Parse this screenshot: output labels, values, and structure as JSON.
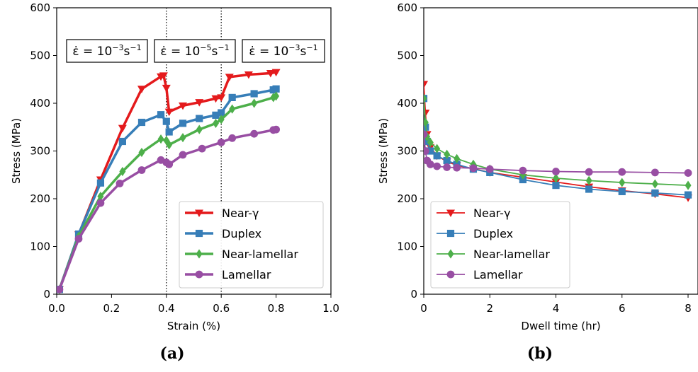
{
  "colors": {
    "near_gamma": "#e41a1c",
    "duplex": "#377eb8",
    "near_lamellar": "#4daf4a",
    "lamellar": "#984ea3"
  },
  "chart_data": [
    {
      "panel_label": "(a)",
      "type": "line",
      "xlabel": "Strain (%)",
      "ylabel": "Stress (MPa)",
      "xlim": [
        0.0,
        1.0
      ],
      "ylim": [
        0,
        600
      ],
      "xticks": [
        "0.0",
        "0.2",
        "0.4",
        "0.6",
        "0.8",
        "1.0"
      ],
      "yticks": [
        "0",
        "100",
        "200",
        "300",
        "400",
        "500",
        "600"
      ],
      "grid": false,
      "legend_loc": "lower right",
      "vlines": [
        0.4,
        0.6
      ],
      "rate_labels": [
        {
          "prefix": "ε̇ = 10",
          "exp": "−3",
          "unit": "s",
          "unit_exp": "−1"
        },
        {
          "prefix": "ε̇ = 10",
          "exp": "−5",
          "unit": "s",
          "unit_exp": "−1"
        },
        {
          "prefix": "ε̇ = 10",
          "exp": "−3",
          "unit": "s",
          "unit_exp": "−1"
        }
      ],
      "series": [
        {
          "name": "Near-γ",
          "color_key": "near_gamma",
          "marker": "triangle-down",
          "x": [
            0.01,
            0.08,
            0.16,
            0.24,
            0.31,
            0.38,
            0.39,
            0.4,
            0.41,
            0.46,
            0.52,
            0.58,
            0.6,
            0.63,
            0.7,
            0.78,
            0.8
          ],
          "y": [
            10,
            125,
            240,
            348,
            430,
            456,
            458,
            432,
            382,
            395,
            402,
            410,
            412,
            455,
            460,
            463,
            465
          ]
        },
        {
          "name": "Duplex",
          "color_key": "duplex",
          "marker": "square",
          "x": [
            0.01,
            0.08,
            0.16,
            0.24,
            0.31,
            0.38,
            0.4,
            0.41,
            0.46,
            0.52,
            0.58,
            0.6,
            0.64,
            0.72,
            0.79,
            0.8
          ],
          "y": [
            10,
            126,
            233,
            320,
            360,
            376,
            362,
            340,
            358,
            368,
            375,
            380,
            412,
            420,
            428,
            430
          ]
        },
        {
          "name": "Near-lamellar",
          "color_key": "near_lamellar",
          "marker": "diamond",
          "x": [
            0.01,
            0.08,
            0.16,
            0.24,
            0.31,
            0.38,
            0.4,
            0.41,
            0.46,
            0.52,
            0.58,
            0.6,
            0.64,
            0.72,
            0.79,
            0.8
          ],
          "y": [
            10,
            121,
            205,
            257,
            297,
            325,
            322,
            313,
            328,
            345,
            358,
            366,
            388,
            400,
            412,
            415
          ]
        },
        {
          "name": "Lamellar",
          "color_key": "lamellar",
          "marker": "circle",
          "x": [
            0.01,
            0.08,
            0.16,
            0.23,
            0.31,
            0.38,
            0.4,
            0.41,
            0.46,
            0.53,
            0.6,
            0.64,
            0.72,
            0.79,
            0.8
          ],
          "y": [
            10,
            116,
            191,
            232,
            260,
            281,
            276,
            272,
            292,
            305,
            318,
            327,
            336,
            344,
            345
          ]
        }
      ]
    },
    {
      "panel_label": "(b)",
      "type": "line",
      "xlabel": "Dwell time (hr)",
      "ylabel": "Stress (MPa)",
      "xlim": [
        0,
        8.3
      ],
      "ylim": [
        0,
        600
      ],
      "xticks": [
        "0",
        "2",
        "4",
        "6",
        "8"
      ],
      "yticks": [
        "0",
        "100",
        "200",
        "300",
        "400",
        "500",
        "600"
      ],
      "grid": false,
      "legend_loc": "lower left",
      "series": [
        {
          "name": "Near-γ",
          "color_key": "near_gamma",
          "marker": "triangle-down",
          "x": [
            0.0,
            0.05,
            0.1,
            0.2,
            0.4,
            0.7,
            1.0,
            1.5,
            2.0,
            3.0,
            4.0,
            5.0,
            6.0,
            7.0,
            8.0
          ],
          "y": [
            440,
            380,
            335,
            308,
            290,
            278,
            270,
            263,
            255,
            245,
            235,
            225,
            217,
            210,
            202
          ]
        },
        {
          "name": "Duplex",
          "color_key": "duplex",
          "marker": "square",
          "x": [
            0.0,
            0.05,
            0.1,
            0.2,
            0.4,
            0.7,
            1.0,
            1.5,
            2.0,
            3.0,
            4.0,
            5.0,
            6.0,
            7.0,
            8.0
          ],
          "y": [
            410,
            350,
            320,
            300,
            290,
            280,
            272,
            262,
            255,
            240,
            228,
            220,
            215,
            212,
            208
          ]
        },
        {
          "name": "Near-lamellar",
          "color_key": "near_lamellar",
          "marker": "diamond",
          "x": [
            0.0,
            0.05,
            0.1,
            0.2,
            0.4,
            0.7,
            1.0,
            1.5,
            2.0,
            3.0,
            4.0,
            5.0,
            6.0,
            7.0,
            8.0
          ],
          "y": [
            410,
            360,
            330,
            318,
            305,
            293,
            284,
            272,
            262,
            250,
            243,
            238,
            234,
            231,
            228
          ]
        },
        {
          "name": "Lamellar",
          "color_key": "lamellar",
          "marker": "circle",
          "x": [
            0.0,
            0.05,
            0.1,
            0.2,
            0.4,
            0.7,
            1.0,
            1.5,
            2.0,
            3.0,
            4.0,
            5.0,
            6.0,
            7.0,
            8.0
          ],
          "y": [
            335,
            300,
            280,
            272,
            268,
            266,
            265,
            264,
            262,
            259,
            257,
            256,
            256,
            255,
            254
          ]
        }
      ]
    }
  ]
}
